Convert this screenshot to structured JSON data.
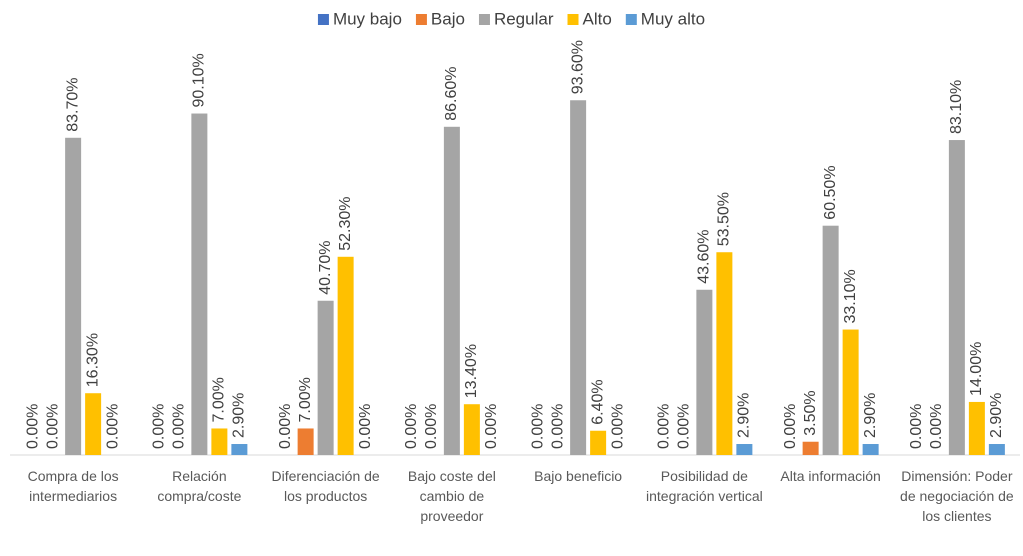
{
  "chart_data": {
    "type": "bar",
    "categories": [
      "Compra de los intermediarios",
      "Relación compra/coste",
      "Diferenciación de los productos",
      "Bajo coste del cambio de proveedor",
      "Bajo beneficio",
      "Posibilidad de integración vertical",
      "Alta información",
      "Dimensión: Poder de negociación de los clientes"
    ],
    "series": [
      {
        "name": "Muy bajo",
        "color": "#4472c4",
        "values": [
          0,
          0,
          0,
          0,
          0,
          0,
          0,
          0
        ],
        "value_labels": [
          "0.00%",
          "0.00%",
          "0.00%",
          "0.00%",
          "0.00%",
          "0.00%",
          "0.00%",
          "0.00%"
        ]
      },
      {
        "name": "Bajo",
        "color": "#ed7d31",
        "values": [
          0,
          0,
          7.0,
          0,
          0,
          0,
          3.5,
          0
        ],
        "value_labels": [
          "0.00%",
          "0.00%",
          "7.00%",
          "0.00%",
          "0.00%",
          "0.00%",
          "3.50%",
          "0.00%"
        ]
      },
      {
        "name": "Regular",
        "color": "#a5a5a5",
        "values": [
          83.7,
          90.1,
          40.7,
          86.6,
          93.6,
          43.6,
          60.5,
          83.1
        ],
        "value_labels": [
          "83.70%",
          "90.10%",
          "40.70%",
          "86.60%",
          "93.60%",
          "43.60%",
          "60.50%",
          "83.10%"
        ]
      },
      {
        "name": "Alto",
        "color": "#ffc000",
        "values": [
          16.3,
          7.0,
          52.3,
          13.4,
          6.4,
          53.5,
          33.1,
          14.0
        ],
        "value_labels": [
          "16.30%",
          "7.00%",
          "52.30%",
          "13.40%",
          "6.40%",
          "53.50%",
          "33.10%",
          "14.00%"
        ]
      },
      {
        "name": "Muy alto",
        "color": "#5b9bd5",
        "values": [
          0,
          2.9,
          0,
          0,
          0,
          2.9,
          2.9,
          2.9
        ],
        "value_labels": [
          "0.00%",
          "2.90%",
          "0.00%",
          "0.00%",
          "0.00%",
          "2.90%",
          "2.90%",
          "2.90%"
        ]
      }
    ],
    "ylim": [
      0,
      100
    ],
    "legend": "top"
  }
}
